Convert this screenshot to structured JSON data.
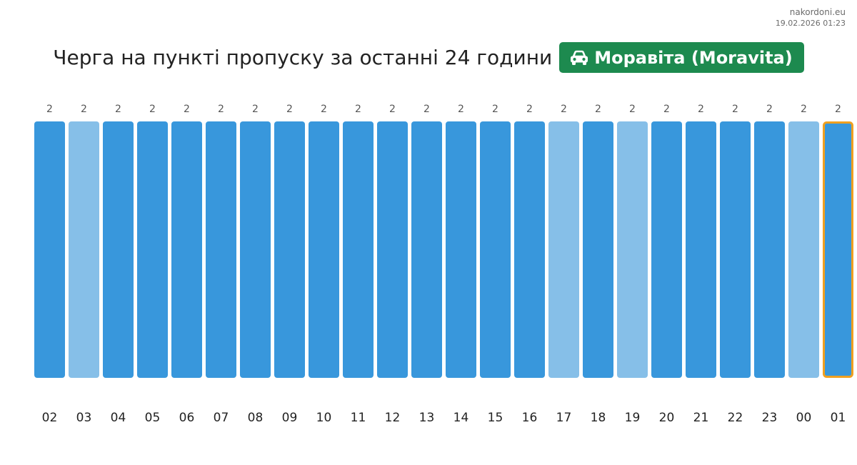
{
  "site": {
    "name": "nakordoni.eu",
    "timestamp": "19.02.2026 01:23"
  },
  "header": {
    "title": "Черга на пункті пропуску за останні 24 години",
    "checkpoint": "Моравіта (Moravita)",
    "checkpoint_icon": "car-icon",
    "checkpoint_color": "#1d8a4f"
  },
  "chart_data": {
    "type": "bar",
    "categories": [
      "02",
      "03",
      "04",
      "05",
      "06",
      "07",
      "08",
      "09",
      "10",
      "11",
      "12",
      "13",
      "14",
      "15",
      "16",
      "17",
      "18",
      "19",
      "20",
      "21",
      "22",
      "23",
      "00",
      "01"
    ],
    "values": [
      2,
      2,
      2,
      2,
      2,
      2,
      2,
      2,
      2,
      2,
      2,
      2,
      2,
      2,
      2,
      2,
      2,
      2,
      2,
      2,
      2,
      2,
      2,
      2
    ],
    "light_bars": [
      "03",
      "17",
      "19",
      "00"
    ],
    "highlighted": "01",
    "ylim": [
      0,
      2
    ],
    "grid": false,
    "colors": {
      "bar": "#3897dc",
      "bar_light": "#86bfe8",
      "highlight_border": "#f0a020",
      "value_label": "#555555",
      "tick_label": "#222222"
    }
  }
}
